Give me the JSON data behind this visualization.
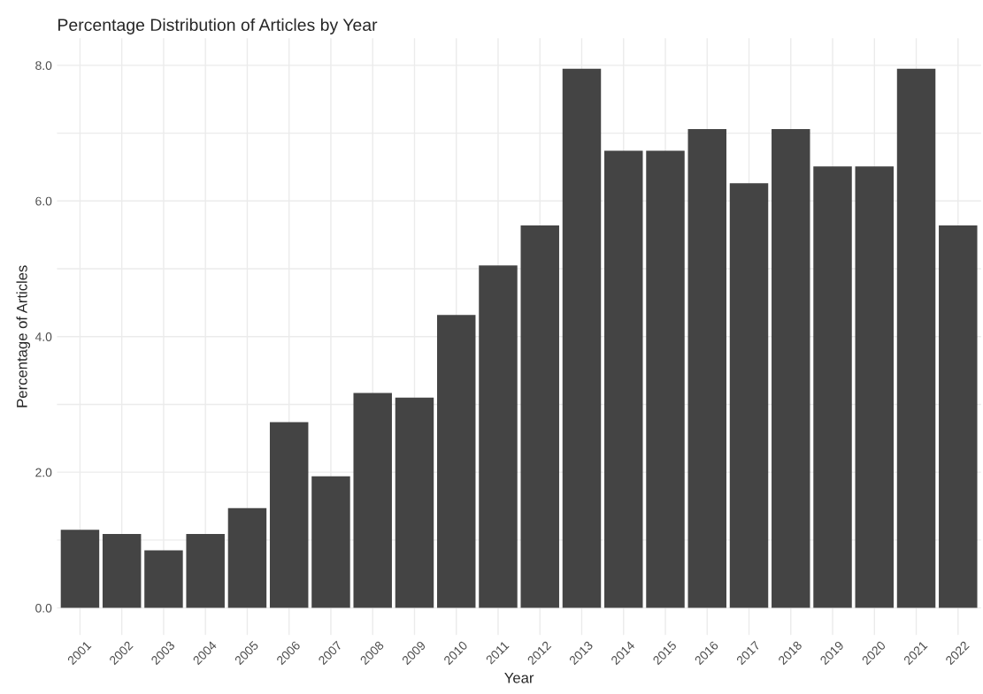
{
  "chart_data": {
    "type": "bar",
    "title": "Percentage Distribution of Articles by Year",
    "xlabel": "Year",
    "ylabel": "Percentage of Articles",
    "categories": [
      "2001",
      "2002",
      "2003",
      "2004",
      "2005",
      "2006",
      "2007",
      "2008",
      "2009",
      "2010",
      "2011",
      "2012",
      "2013",
      "2014",
      "2015",
      "2016",
      "2017",
      "2018",
      "2019",
      "2020",
      "2021",
      "2022"
    ],
    "values": [
      1.15,
      1.09,
      0.85,
      1.09,
      1.47,
      2.74,
      1.94,
      3.17,
      3.1,
      4.32,
      5.05,
      5.64,
      7.95,
      6.74,
      6.74,
      7.06,
      6.26,
      7.06,
      6.51,
      6.51,
      7.95,
      5.64
    ],
    "color": "#444444",
    "ylim": [
      -0.4,
      8.4
    ],
    "yticks": [
      {
        "value": 0,
        "label": "0.0"
      },
      {
        "value": 1,
        "label": null
      },
      {
        "value": 2,
        "label": "2.0"
      },
      {
        "value": 3,
        "label": null
      },
      {
        "value": 4,
        "label": "4.0"
      },
      {
        "value": 5,
        "label": null
      },
      {
        "value": 6,
        "label": "6.0"
      },
      {
        "value": 7,
        "label": null
      },
      {
        "value": 8,
        "label": "8.0"
      }
    ],
    "grid": true
  }
}
